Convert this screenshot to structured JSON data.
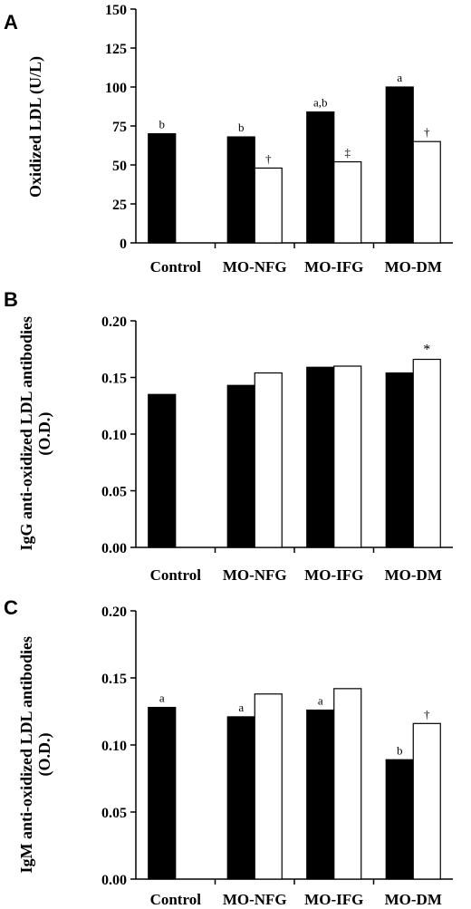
{
  "chart_data": [
    {
      "panel_label": "A",
      "type": "bar",
      "ylabel": "Oxidized LDL (U/L)",
      "ylim": [
        0,
        150
      ],
      "yticks": [
        "0",
        "25",
        "50",
        "75",
        "100",
        "125",
        "150"
      ],
      "categories": [
        "Control",
        "MO-NFG",
        "MO-IFG",
        "MO-DM"
      ],
      "series": [
        {
          "fill": "#000000",
          "values": [
            70,
            68,
            84,
            100
          ],
          "labels": [
            "b",
            "b",
            "a,b",
            "a"
          ]
        },
        {
          "fill": "#ffffff",
          "values": [
            null,
            48,
            52,
            65
          ],
          "labels": [
            "",
            "†",
            "‡",
            "†"
          ]
        }
      ],
      "legend": "none",
      "grid": false
    },
    {
      "panel_label": "B",
      "type": "bar",
      "ylabel": "IgG anti-oxidized LDL antibodies\n(O.D.)",
      "ylim": [
        0,
        0.2
      ],
      "yticks": [
        "0.00",
        "0.05",
        "0.10",
        "0.15",
        "0.20"
      ],
      "categories": [
        "Control",
        "MO-NFG",
        "MO-IFG",
        "MO-DM"
      ],
      "series": [
        {
          "fill": "#000000",
          "values": [
            0.135,
            0.143,
            0.159,
            0.154
          ],
          "labels": [
            "",
            "",
            "",
            ""
          ]
        },
        {
          "fill": "#ffffff",
          "values": [
            null,
            0.154,
            0.16,
            0.166
          ],
          "labels": [
            "",
            "",
            "",
            "*"
          ]
        }
      ],
      "legend": "none",
      "grid": false
    },
    {
      "panel_label": "C",
      "type": "bar",
      "ylabel": "IgM anti-oxidized LDL antibodies\n(O.D.)",
      "ylim": [
        0,
        0.2
      ],
      "yticks": [
        "0.00",
        "0.05",
        "0.10",
        "0.15",
        "0.20"
      ],
      "categories": [
        "Control",
        "MO-NFG",
        "MO-IFG",
        "MO-DM"
      ],
      "series": [
        {
          "fill": "#000000",
          "values": [
            0.128,
            0.121,
            0.126,
            0.089
          ],
          "labels": [
            "a",
            "a",
            "a",
            "b"
          ]
        },
        {
          "fill": "#ffffff",
          "values": [
            null,
            0.138,
            0.142,
            0.116
          ],
          "labels": [
            "",
            "",
            "",
            "†"
          ]
        }
      ],
      "legend": "none",
      "grid": false
    }
  ]
}
